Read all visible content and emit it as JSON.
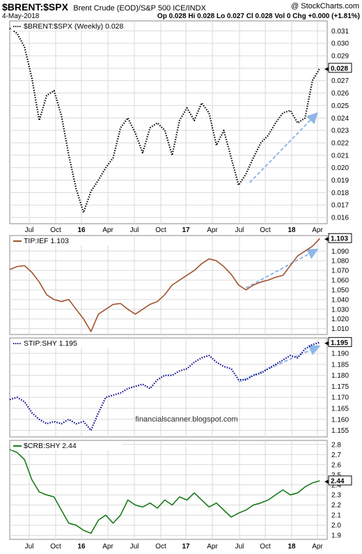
{
  "header": {
    "symbol": "$BRENT:$SPX",
    "description": "Brent Crude (EOD)/S&P 500 ICE/INDX",
    "copyright": "@ StockCharts.com",
    "date": "4-May-2018",
    "ohlc": "Op 0.028  Hi 0.028  Lo 0.027  Cl 0.028  Vol 0  Chg +0.000 (+1.81%)",
    "arrow_glyph": "▲"
  },
  "watermark": "financialscanner.blogspot.com",
  "x_axis": {
    "labels": [
      "Jul",
      "Oct",
      "16",
      "Apr",
      "Jul",
      "Oct",
      "17",
      "Apr",
      "Jul",
      "Oct",
      "18",
      "Apr"
    ]
  },
  "colors": {
    "black": "#000000",
    "brown": "#a0522d",
    "navy": "#00008b",
    "green": "#1a7a1a",
    "trend_arrow": "#8fb6e8",
    "grid": "#d9d9d9"
  },
  "chart_data": [
    {
      "type": "line",
      "title": "$BRENT:$SPX (Weekly) 0.028",
      "style": "dotted",
      "color": "#000000",
      "last_value": "0.028",
      "ylim": [
        0.0155,
        0.0318
      ],
      "y_ticks": [
        "0.031",
        "0.030",
        "0.029",
        "0.028",
        "0.027",
        "0.026",
        "0.025",
        "0.024",
        "0.023",
        "0.022",
        "0.021",
        "0.020",
        "0.019",
        "0.018",
        "0.017",
        "0.016"
      ],
      "x": [
        0,
        4,
        8,
        12,
        16,
        20,
        24,
        28,
        32,
        36,
        40,
        44,
        48,
        52,
        56,
        60,
        64,
        68,
        72,
        76,
        80,
        84,
        88,
        92,
        96,
        100,
        104,
        108,
        112,
        116,
        120,
        124,
        128,
        132,
        136,
        140,
        144,
        148
      ],
      "values": [
        0.0312,
        0.0308,
        0.0297,
        0.0272,
        0.0238,
        0.0258,
        0.0262,
        0.0242,
        0.021,
        0.0183,
        0.0164,
        0.0181,
        0.019,
        0.02,
        0.0208,
        0.0232,
        0.024,
        0.0228,
        0.0212,
        0.0232,
        0.0236,
        0.023,
        0.021,
        0.0238,
        0.0248,
        0.0238,
        0.0252,
        0.0244,
        0.0218,
        0.023,
        0.0208,
        0.0186,
        0.0195,
        0.0208,
        0.022,
        0.0226,
        0.0236,
        0.0244
      ],
      "x_extra": [
        152,
        156,
        160,
        164,
        168
      ],
      "values_extra": [
        0.0246,
        0.0236,
        0.024,
        0.027,
        0.028
      ],
      "trend_arrow": {
        "from": [
          130,
          0.0188
        ],
        "to": [
          166,
          0.0243
        ]
      }
    },
    {
      "type": "line",
      "title": "TIP:IEF 1.103",
      "style": "solid",
      "color": "#a0522d",
      "last_value": "1.103",
      "ylim": [
        1.004,
        1.106
      ],
      "y_ticks": [
        "1.090",
        "1.080",
        "1.070",
        "1.060",
        "1.050",
        "1.040",
        "1.030",
        "1.020",
        "1.010"
      ],
      "x": [
        0,
        4,
        8,
        12,
        16,
        20,
        24,
        28,
        32,
        36,
        40,
        44,
        48,
        52,
        56,
        60,
        64,
        68,
        72,
        76,
        80,
        84,
        88,
        92,
        96,
        100,
        104,
        108,
        112,
        116,
        120,
        124,
        128,
        132,
        136,
        140,
        144,
        148,
        152,
        156,
        160,
        164,
        168
      ],
      "values": [
        1.071,
        1.074,
        1.075,
        1.068,
        1.058,
        1.045,
        1.04,
        1.038,
        1.04,
        1.03,
        1.02,
        1.007,
        1.025,
        1.03,
        1.035,
        1.036,
        1.03,
        1.025,
        1.03,
        1.035,
        1.038,
        1.045,
        1.055,
        1.06,
        1.065,
        1.07,
        1.077,
        1.082,
        1.08,
        1.074,
        1.066,
        1.055,
        1.05,
        1.055,
        1.058,
        1.06,
        1.063,
        1.065,
        1.075,
        1.085,
        1.09,
        1.095,
        1.103
      ],
      "trend_arrow": {
        "from": [
          128,
          1.052
        ],
        "to": [
          166,
          1.091
        ]
      }
    },
    {
      "type": "line",
      "title": "STIP:SHY 1.195",
      "style": "dotted",
      "color": "#00008b",
      "last_value": "1.195",
      "ylim": [
        1.152,
        1.197
      ],
      "y_ticks": [
        "1.190",
        "1.185",
        "1.180",
        "1.175",
        "1.170",
        "1.165",
        "1.160",
        "1.155"
      ],
      "x": [
        0,
        4,
        8,
        12,
        16,
        20,
        24,
        28,
        32,
        36,
        40,
        44,
        48,
        52,
        56,
        60,
        64,
        68,
        72,
        76,
        80,
        84,
        88,
        92,
        96,
        100,
        104,
        108,
        112,
        116,
        120,
        124,
        128,
        132,
        136,
        140,
        144,
        148,
        152,
        156,
        160,
        164,
        168
      ],
      "values": [
        1.169,
        1.17,
        1.168,
        1.163,
        1.16,
        1.158,
        1.159,
        1.158,
        1.16,
        1.158,
        1.159,
        1.155,
        1.163,
        1.17,
        1.171,
        1.172,
        1.174,
        1.175,
        1.176,
        1.174,
        1.178,
        1.18,
        1.18,
        1.182,
        1.183,
        1.186,
        1.188,
        1.189,
        1.186,
        1.184,
        1.183,
        1.178,
        1.178,
        1.18,
        1.181,
        1.183,
        1.185,
        1.187,
        1.189,
        1.188,
        1.192,
        1.194,
        1.195
      ],
      "trend_arrow": {
        "from": [
          124,
          1.177
        ],
        "to": [
          167,
          1.193
        ]
      }
    },
    {
      "type": "line",
      "title": "$CRB:SHY 2.44",
      "style": "solid",
      "color": "#1a7a1a",
      "last_value": "2.44",
      "ylim": [
        1.86,
        2.84
      ],
      "y_ticks": [
        "2.8",
        "2.7",
        "2.6",
        "2.5",
        "2.4",
        "2.3",
        "2.2",
        "2.1",
        "2.0",
        "1.9"
      ],
      "x": [
        0,
        4,
        8,
        12,
        16,
        20,
        24,
        28,
        32,
        36,
        40,
        44,
        48,
        52,
        56,
        60,
        64,
        68,
        72,
        76,
        80,
        84,
        88,
        92,
        96,
        100,
        104,
        108,
        112,
        116,
        120,
        124,
        128,
        132,
        136,
        140,
        144,
        148,
        152,
        156,
        160,
        164,
        168
      ],
      "values": [
        2.75,
        2.72,
        2.65,
        2.45,
        2.33,
        2.3,
        2.28,
        2.15,
        2.02,
        2.0,
        1.95,
        1.92,
        2.05,
        2.1,
        2.02,
        2.1,
        2.25,
        2.2,
        2.18,
        2.22,
        2.17,
        2.25,
        2.2,
        2.28,
        2.25,
        2.32,
        2.25,
        2.18,
        2.22,
        2.15,
        2.08,
        2.12,
        2.15,
        2.2,
        2.22,
        2.25,
        2.3,
        2.35,
        2.3,
        2.32,
        2.38,
        2.42,
        2.44
      ]
    }
  ]
}
